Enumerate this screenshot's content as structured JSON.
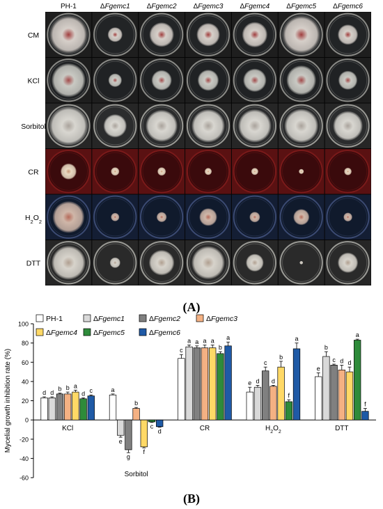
{
  "panel_a": {
    "strains": [
      "PH-1",
      "ΔFgemc1",
      "ΔFgemc2",
      "ΔFgemc3",
      "ΔFgemc4",
      "ΔFgemc5",
      "ΔFgemc6"
    ],
    "conditions": [
      {
        "label": "CM",
        "medium": "#222426",
        "ring": "#8a8a86",
        "tint": "#1e1e1e",
        "sizes": [
          0.88,
          0.35,
          0.58,
          0.55,
          0.6,
          0.88,
          0.48
        ],
        "colony": "#d6cfc9",
        "center": "#a03d3d"
      },
      {
        "label": "KCl",
        "medium": "#202224",
        "ring": "#8a8a86",
        "tint": "#1e1e1e",
        "sizes": [
          0.8,
          0.32,
          0.48,
          0.5,
          0.55,
          0.7,
          0.45
        ],
        "colony": "#c9c9c3",
        "center": "#a24a4a"
      },
      {
        "label": "Sorbitol",
        "medium": "#2b2c2d",
        "ring": "#9a9a95",
        "tint": "#262626",
        "sizes": [
          0.9,
          0.55,
          0.75,
          0.78,
          0.78,
          0.8,
          0.7
        ],
        "colony": "#d8d6d0",
        "center": "#a9a29b"
      },
      {
        "label": "CR",
        "medium": "#3a0a0c",
        "ring": "#7a1a1a",
        "tint": "#5a1112",
        "sizes": [
          0.38,
          0.2,
          0.2,
          0.17,
          0.17,
          0.12,
          0.18
        ],
        "colony": "#e8d9c2",
        "center": "#c89878"
      },
      {
        "label": "H₂O₂",
        "medium": "#101a2c",
        "ring": "#3b4a72",
        "tint": "#141e34",
        "sizes": [
          0.75,
          0.2,
          0.24,
          0.42,
          0.25,
          0.38,
          0.21
        ],
        "colony": "#cfb6a8",
        "center": "#b56a5a"
      },
      {
        "label": "DTT",
        "medium": "#2a2a2a",
        "ring": "#9a9a95",
        "tint": "#262626",
        "sizes": [
          0.8,
          0.25,
          0.6,
          0.78,
          0.42,
          0.08,
          0.48
        ],
        "colony": "#d7d3cb",
        "center": "#b09f90"
      }
    ],
    "caption": "(A)"
  },
  "panel_b": {
    "caption": "(B)",
    "colors": {
      "PH-1": "#ffffff",
      "ΔFgemc1": "#d9d9d9",
      "ΔFgemc2": "#808080",
      "ΔFgemc3": "#f4b183",
      "ΔFgemc4": "#ffd966",
      "ΔFgemc5": "#2e8b3a",
      "ΔFgemc6": "#1f5aa6"
    }
  },
  "chart_data": {
    "type": "bar",
    "title": "",
    "xlabel": "",
    "ylabel": "Mycelial growth inhibition rate (%)",
    "ylim": [
      -60,
      100
    ],
    "yticks": [
      -60,
      -40,
      -20,
      0,
      20,
      40,
      60,
      80,
      100
    ],
    "grid": false,
    "legend_position": "top-left",
    "categories": [
      "KCl",
      "Sorbitol",
      "CR",
      "H₂O₂",
      "DTT"
    ],
    "series": [
      {
        "name": "PH-1",
        "values": [
          23,
          26,
          64,
          29,
          45
        ],
        "errors": [
          1,
          1,
          4,
          5,
          4
        ],
        "letters": [
          "d",
          "a",
          "c",
          "e",
          "e"
        ]
      },
      {
        "name": "ΔFgemc1",
        "values": [
          23,
          -16,
          76,
          34,
          66
        ],
        "errors": [
          1,
          2,
          2,
          2,
          5
        ],
        "letters": [
          "d",
          "e",
          "a",
          "d",
          "b"
        ]
      },
      {
        "name": "ΔFgemc2",
        "values": [
          27,
          -31,
          75,
          51,
          57
        ],
        "errors": [
          1,
          3,
          2,
          4,
          1
        ],
        "letters": [
          "b",
          "g",
          "a",
          "c",
          "c"
        ]
      },
      {
        "name": "ΔFgemc3",
        "values": [
          27,
          12,
          75,
          35,
          52
        ],
        "errors": [
          2,
          1,
          3,
          1,
          5
        ],
        "letters": [
          "b",
          "b",
          "a",
          "d",
          "d"
        ]
      },
      {
        "name": "ΔFgemc4",
        "values": [
          29,
          -28,
          75,
          55,
          50
        ],
        "errors": [
          2,
          1,
          3,
          6,
          5
        ],
        "letters": [
          "a",
          "f",
          "a",
          "b",
          "d"
        ]
      },
      {
        "name": "ΔFgemc5",
        "values": [
          22,
          -2,
          69,
          19,
          83
        ],
        "errors": [
          1,
          0.5,
          2,
          2,
          1
        ],
        "letters": [
          "d",
          "c",
          "b",
          "f",
          "a"
        ]
      },
      {
        "name": "ΔFgemc6",
        "values": [
          25,
          -7,
          77,
          74,
          9
        ],
        "errors": [
          1,
          0.5,
          4,
          6,
          3
        ],
        "letters": [
          "c",
          "d",
          "a",
          "a",
          "f"
        ]
      }
    ]
  }
}
